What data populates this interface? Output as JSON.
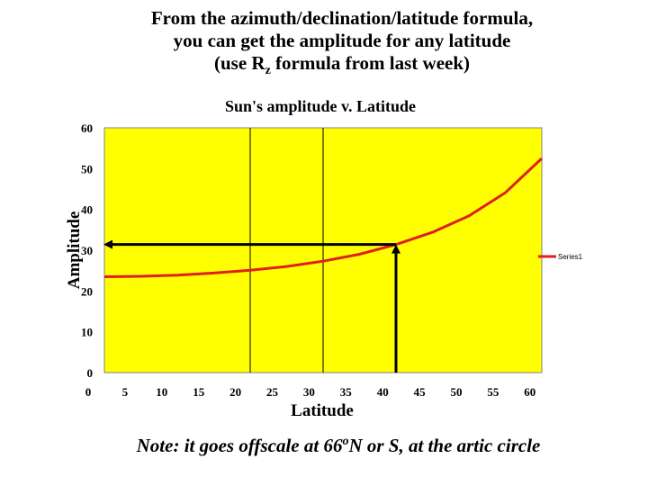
{
  "slide": {
    "title_line1": "From the azimuth/declination/latitude formula,",
    "title_line2": "you can get the amplitude for any latitude",
    "title_line3_before": "(use R",
    "title_line3_sub": "z",
    "title_line3_after": " formula from last week)",
    "note_before": "Note: it goes offscale at 66",
    "note_sup": "o",
    "note_after": "N or S, at the artic circle"
  },
  "colors": {
    "plot_background": "#ffff00",
    "series_line": "#e0201e",
    "arrow": "#000000"
  },
  "chart_data": {
    "type": "line",
    "title": "Sun's amplitude v. Latitude",
    "xlabel": "Latitude",
    "ylabel": "Amplitude",
    "x": [
      0,
      5,
      10,
      15,
      20,
      25,
      30,
      35,
      40,
      45,
      50,
      55,
      60
    ],
    "series": [
      {
        "name": "Series1",
        "values": [
          23.5,
          23.6,
          23.9,
          24.4,
          25.1,
          26.0,
          27.3,
          29.0,
          31.4,
          34.4,
          38.4,
          44.1,
          52.5
        ]
      }
    ],
    "xlim": [
      0,
      60
    ],
    "ylim": [
      0,
      60
    ],
    "x_ticks": [
      "0",
      "5",
      "10",
      "15",
      "20",
      "25",
      "30",
      "35",
      "40",
      "45",
      "50",
      "55",
      "60"
    ],
    "y_ticks": [
      "0",
      "10",
      "20",
      "30",
      "40",
      "50",
      "60"
    ],
    "gridlines_vertical_at": [
      20,
      30
    ],
    "legend_position": "right",
    "annotation": {
      "type": "arrow-path",
      "from_x": 40,
      "from_y": 0,
      "corner_x": 40,
      "corner_y": 31.4,
      "to_x": 0,
      "to_y": 31.4
    }
  }
}
